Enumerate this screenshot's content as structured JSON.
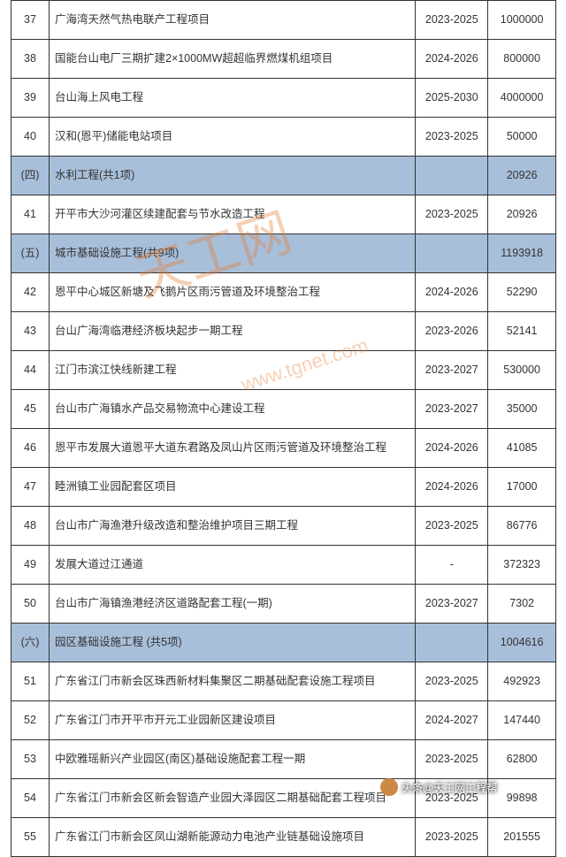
{
  "watermark": {
    "text": "天工网",
    "url": "www.tgnet.com"
  },
  "footer_credit": "头条@天工网工程帮",
  "columns": [
    "num",
    "name",
    "year",
    "value"
  ],
  "section_bg": "#a8bfda",
  "rows": [
    {
      "num": "37",
      "name": "广海湾天然气热电联产工程项目",
      "year": "2023-2025",
      "value": "1000000"
    },
    {
      "num": "38",
      "name": "国能台山电厂三期扩建2×1000MW超超临界燃煤机组项目",
      "year": "2024-2026",
      "value": "800000"
    },
    {
      "num": "39",
      "name": "台山海上风电工程",
      "year": "2025-2030",
      "value": "4000000"
    },
    {
      "num": "40",
      "name": "汉和(恩平)储能电站项目",
      "year": "2023-2025",
      "value": "50000"
    },
    {
      "section": true,
      "num": "(四)",
      "name": "水利工程(共1项)",
      "year": "",
      "value": "20926"
    },
    {
      "num": "41",
      "name": "开平市大沙河灌区续建配套与节水改造工程",
      "year": "2023-2025",
      "value": "20926"
    },
    {
      "section": true,
      "num": "(五)",
      "name": "城市基础设施工程(共9项)",
      "year": "",
      "value": "1193918"
    },
    {
      "num": "42",
      "name": "恩平中心城区新塘及飞鹅片区雨污管道及环境整治工程",
      "year": "2024-2026",
      "value": "52290"
    },
    {
      "num": "43",
      "name": "台山广海湾临港经济板块起步一期工程",
      "year": "2023-2026",
      "value": "52141"
    },
    {
      "num": "44",
      "name": "江门市滨江快线新建工程",
      "year": "2023-2027",
      "value": "530000"
    },
    {
      "num": "45",
      "name": "台山市广海镇水产品交易物流中心建设工程",
      "year": "2023-2027",
      "value": "35000"
    },
    {
      "num": "46",
      "name": "恩平市发展大道恩平大道东君路及凤山片区雨污管道及环境整治工程",
      "year": "2024-2026",
      "value": "41085"
    },
    {
      "num": "47",
      "name": "睦洲镇工业园配套区项目",
      "year": "2024-2026",
      "value": "17000"
    },
    {
      "num": "48",
      "name": "台山市广海渔港升级改造和整治维护项目三期工程",
      "year": "2023-2025",
      "value": "86776"
    },
    {
      "num": "49",
      "name": "发展大道过江通道",
      "year": "-",
      "value": "372323"
    },
    {
      "num": "50",
      "name": "台山市广海镇渔港经济区道路配套工程(一期)",
      "year": "2023-2027",
      "value": "7302"
    },
    {
      "section": true,
      "num": "(六)",
      "name": "园区基础设施工程 (共5项)",
      "year": "",
      "value": "1004616"
    },
    {
      "num": "51",
      "name": "广东省江门市新会区珠西新材料集聚区二期基础配套设施工程项目",
      "year": "2023-2025",
      "value": "492923"
    },
    {
      "num": "52",
      "name": "广东省江门市开平市开元工业园新区建设项目",
      "year": "2024-2027",
      "value": "147440"
    },
    {
      "num": "53",
      "name": "中欧雅瑶新兴产业园区(南区)基础设施配套工程一期",
      "year": "2023-2025",
      "value": "62800"
    },
    {
      "num": "54",
      "name": "广东省江门市新会区新会智造产业园大泽园区二期基础配套工程项目",
      "year": "2023-2025",
      "value": "99898"
    },
    {
      "num": "55",
      "name": "广东省江门市新会区凤山湖新能源动力电池产业链基础设施项目",
      "year": "2023-2025",
      "value": "201555"
    }
  ]
}
